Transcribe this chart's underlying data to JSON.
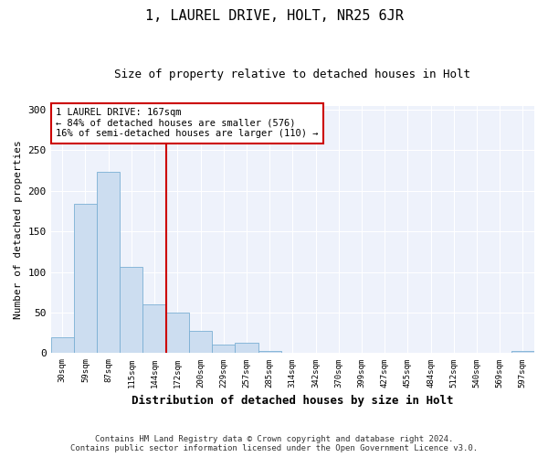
{
  "title": "1, LAUREL DRIVE, HOLT, NR25 6JR",
  "subtitle": "Size of property relative to detached houses in Holt",
  "xlabel": "Distribution of detached houses by size in Holt",
  "ylabel": "Number of detached properties",
  "categories": [
    "30sqm",
    "59sqm",
    "87sqm",
    "115sqm",
    "144sqm",
    "172sqm",
    "200sqm",
    "229sqm",
    "257sqm",
    "285sqm",
    "314sqm",
    "342sqm",
    "370sqm",
    "399sqm",
    "427sqm",
    "455sqm",
    "484sqm",
    "512sqm",
    "540sqm",
    "569sqm",
    "597sqm"
  ],
  "values": [
    20,
    184,
    224,
    106,
    60,
    50,
    27,
    11,
    13,
    3,
    0,
    0,
    0,
    0,
    0,
    0,
    0,
    0,
    0,
    0,
    3
  ],
  "bar_color": "#ccddf0",
  "bar_edge_color": "#7aafd4",
  "vline_color": "#cc0000",
  "vline_x_index": 4.5,
  "annotation_text": "1 LAUREL DRIVE: 167sqm\n← 84% of detached houses are smaller (576)\n16% of semi-detached houses are larger (110) →",
  "annotation_box_color": "#ffffff",
  "annotation_box_edge_color": "#cc0000",
  "ylim": [
    0,
    305
  ],
  "yticks": [
    0,
    50,
    100,
    150,
    200,
    250,
    300
  ],
  "background_color": "#ffffff",
  "plot_bg_color": "#eef2fb",
  "grid_color": "#ffffff",
  "footer": "Contains HM Land Registry data © Crown copyright and database right 2024.\nContains public sector information licensed under the Open Government Licence v3.0."
}
